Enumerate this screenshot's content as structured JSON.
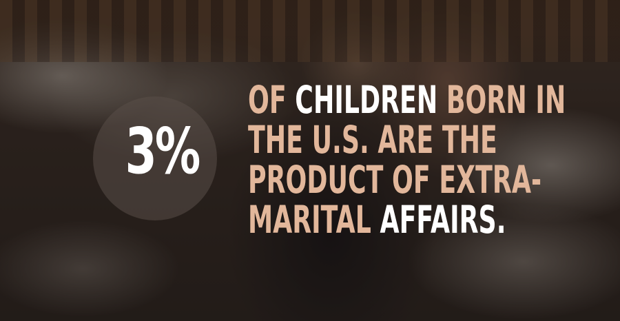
{
  "statistic": {
    "percent": "3%",
    "lines": [
      [
        {
          "text": "OF ",
          "highlight": false
        },
        {
          "text": "CHILDREN",
          "highlight": true
        },
        {
          "text": " BORN IN",
          "highlight": false
        }
      ],
      [
        {
          "text": "THE U.S. ARE THE",
          "highlight": false
        }
      ],
      [
        {
          "text": "PRODUCT OF EXTRA-",
          "highlight": false
        }
      ],
      [
        {
          "text": "MARITAL ",
          "highlight": false
        },
        {
          "text": "AFFAIRS.",
          "highlight": true
        }
      ]
    ]
  },
  "colors": {
    "accent": "#e2b79b",
    "highlight": "#ffffff",
    "circle": "#5a4e48"
  }
}
